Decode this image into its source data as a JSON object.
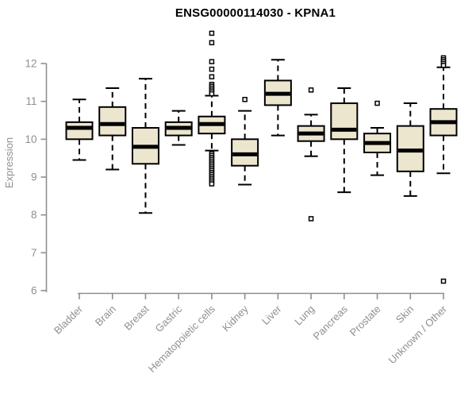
{
  "chart_data": {
    "type": "boxplot",
    "title": "ENSG00000114030 - KPNA1",
    "ylabel": "Expression",
    "xlabel": "",
    "ylim": [
      6,
      12
    ],
    "yticks": [
      6,
      7,
      8,
      9,
      10,
      11,
      12
    ],
    "grid": false,
    "legend": "none",
    "categories": [
      "Bladder",
      "Brain",
      "Breast",
      "Gastric",
      "Hematopoietic cells",
      "Kidney",
      "Liver",
      "Lung",
      "Pancreas",
      "Prostate",
      "Skin",
      "Unknown / Other"
    ],
    "series": [
      {
        "name": "Bladder",
        "low": 9.45,
        "q1": 10.0,
        "median": 10.3,
        "q3": 10.45,
        "high": 11.05,
        "outliers": []
      },
      {
        "name": "Brain",
        "low": 9.2,
        "q1": 10.1,
        "median": 10.4,
        "q3": 10.85,
        "high": 11.35,
        "outliers": []
      },
      {
        "name": "Breast",
        "low": 8.05,
        "q1": 9.35,
        "median": 9.8,
        "q3": 10.3,
        "high": 11.6,
        "outliers": []
      },
      {
        "name": "Gastric",
        "low": 9.85,
        "q1": 10.1,
        "median": 10.3,
        "q3": 10.45,
        "high": 10.75,
        "outliers": []
      },
      {
        "name": "Hematopoietic cells",
        "low": 9.7,
        "q1": 10.15,
        "median": 10.4,
        "q3": 10.6,
        "high": 11.15,
        "outliers": [
          12.8,
          12.55,
          12.05,
          11.85,
          11.65,
          11.45,
          11.4,
          11.35,
          11.3,
          11.25,
          11.2,
          9.62,
          9.57,
          9.52,
          9.47,
          9.42,
          9.37,
          9.32,
          9.27,
          9.22,
          9.17,
          9.12,
          9.07,
          9.02,
          8.97,
          8.92,
          8.87,
          8.82
        ]
      },
      {
        "name": "Kidney",
        "low": 8.8,
        "q1": 9.3,
        "median": 9.6,
        "q3": 10.0,
        "high": 10.75,
        "outliers": [
          11.05
        ]
      },
      {
        "name": "Liver",
        "low": 10.1,
        "q1": 10.9,
        "median": 11.2,
        "q3": 11.55,
        "high": 12.1,
        "outliers": []
      },
      {
        "name": "Lung",
        "low": 9.55,
        "q1": 9.95,
        "median": 10.15,
        "q3": 10.35,
        "high": 10.65,
        "outliers": [
          11.3,
          7.9
        ]
      },
      {
        "name": "Pancreas",
        "low": 8.6,
        "q1": 10.0,
        "median": 10.25,
        "q3": 10.95,
        "high": 11.35,
        "outliers": []
      },
      {
        "name": "Prostate",
        "low": 9.05,
        "q1": 9.65,
        "median": 9.9,
        "q3": 10.15,
        "high": 10.3,
        "outliers": [
          10.95
        ]
      },
      {
        "name": "Skin",
        "low": 8.5,
        "q1": 9.15,
        "median": 9.7,
        "q3": 10.35,
        "high": 10.95,
        "outliers": []
      },
      {
        "name": "Unknown / Other",
        "low": 9.1,
        "q1": 10.1,
        "median": 10.45,
        "q3": 10.8,
        "high": 11.9,
        "outliers": [
          12.15,
          12.1,
          12.05,
          12.0,
          11.95,
          6.25
        ]
      }
    ],
    "colors": {
      "box_fill": "#ece6cf",
      "box_line": "#000000",
      "axis": "#8f8f8f",
      "tick_label": "#8f8f8f",
      "title": "#000000",
      "background": "#ffffff"
    }
  }
}
